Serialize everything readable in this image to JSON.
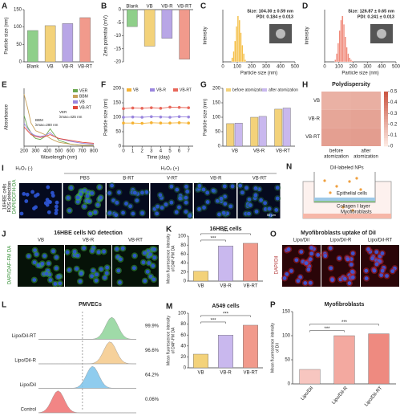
{
  "chart_data": [
    {
      "panel": "A",
      "type": "bar",
      "ylabel": "Particle size (nm)",
      "categories": [
        "Blank",
        "VB",
        "VB-R",
        "VB-RT"
      ],
      "values": [
        90,
        104,
        110,
        127
      ],
      "colors": [
        "#8fcf8a",
        "#f3d27a",
        "#b8a6e6",
        "#f19a8c"
      ],
      "ylim": [
        0,
        150
      ],
      "yticks": [
        0,
        50,
        100,
        150
      ]
    },
    {
      "panel": "B",
      "type": "bar",
      "ylabel": "Zeta potential (mV)",
      "categories": [
        "Blank",
        "VB",
        "VB-R",
        "VB-RT"
      ],
      "values": [
        -6.5,
        -14,
        -11,
        -19
      ],
      "colors": [
        "#8fcf8a",
        "#f3d27a",
        "#b8a6e6",
        "#f19a8c"
      ],
      "ylim": [
        -20,
        0
      ],
      "yticks": [
        0,
        -5,
        -10,
        -15,
        -20
      ]
    },
    {
      "panel": "C",
      "type": "histogram",
      "xlabel": "Particle size (nm)",
      "ylabel": "Intensity",
      "annotations": [
        "Size: 104.30 ± 0.59 nm",
        "PDI: 0.184 ± 0.013"
      ],
      "bins": [
        60,
        70,
        80,
        90,
        100,
        110,
        120,
        130,
        140,
        150,
        160
      ],
      "values": [
        2,
        5,
        10,
        17,
        22,
        20,
        14,
        8,
        4,
        1
      ],
      "color": "#f5c04a",
      "xlim": [
        0,
        500
      ],
      "xticks": [
        0,
        100,
        200,
        300,
        400,
        500
      ],
      "ylim": [
        0,
        25
      ]
    },
    {
      "panel": "D",
      "type": "histogram",
      "xlabel": "Particle size (nm)",
      "ylabel": "Intensity",
      "annotations": [
        "Size: 126.87 ± 0.65 nm",
        "PDI: 0.241 ± 0.013"
      ],
      "bins": [
        70,
        80,
        90,
        100,
        110,
        120,
        130,
        140,
        150,
        160,
        170,
        180,
        190,
        200
      ],
      "values": [
        1,
        4,
        9,
        15,
        20,
        22,
        18,
        12,
        7,
        4,
        2,
        1,
        0.5
      ],
      "color": "#f08a7a",
      "xlim": [
        0,
        500
      ],
      "xticks": [
        0,
        100,
        200,
        300,
        400,
        500
      ],
      "ylim": [
        0,
        25
      ]
    },
    {
      "panel": "E",
      "type": "line",
      "xlabel": "Wavelength (nm)",
      "ylabel": "Absorbance",
      "annotations": [
        "VER",
        "λmax=425 nm",
        "BBM",
        "λmax=280 nm"
      ],
      "x": [
        200,
        230,
        260,
        280,
        300,
        340,
        380,
        425,
        460,
        500,
        600,
        700,
        800
      ],
      "series": [
        {
          "name": "VER",
          "color": "#6aa84f",
          "values": [
            1.6,
            1.0,
            0.7,
            0.5,
            0.4,
            0.35,
            0.5,
            0.9,
            0.6,
            0.3,
            0.1,
            0.05,
            0.05
          ]
        },
        {
          "name": "BBM",
          "color": "#c9a25a",
          "values": [
            2.7,
            2.0,
            1.2,
            1.0,
            0.8,
            0.7,
            0.6,
            0.4,
            0.3,
            0.2,
            0.1,
            0.05,
            0.05
          ]
        },
        {
          "name": "VB",
          "color": "#9a86de",
          "values": [
            1.2,
            0.9,
            0.7,
            0.6,
            0.55,
            0.5,
            0.55,
            0.7,
            0.5,
            0.4,
            0.25,
            0.15,
            0.1
          ]
        },
        {
          "name": "VB-RT",
          "color": "#e0473a",
          "values": [
            1.0,
            0.8,
            0.6,
            0.55,
            0.5,
            0.45,
            0.5,
            0.6,
            0.5,
            0.4,
            0.3,
            0.2,
            0.15
          ]
        }
      ],
      "xlim": [
        200,
        800
      ],
      "xticks": [
        200,
        300,
        400,
        500,
        600,
        700,
        800
      ],
      "ylim": [
        0,
        3
      ],
      "legend": "upper right"
    },
    {
      "panel": "F",
      "type": "line",
      "markers": true,
      "xlabel": "Time (day)",
      "ylabel": "Particle size (nm)",
      "x": [
        0,
        1,
        2,
        3,
        4,
        5,
        6,
        7
      ],
      "series": [
        {
          "name": "VB",
          "color": "#f5b335",
          "values": [
            80,
            80,
            79,
            81,
            80,
            80,
            81,
            80
          ]
        },
        {
          "name": "VB-R",
          "color": "#9a86de",
          "values": [
            100,
            101,
            100,
            102,
            101,
            100,
            102,
            101
          ]
        },
        {
          "name": "VB-RT",
          "color": "#e8675a",
          "values": [
            130,
            132,
            131,
            133,
            131,
            135,
            134,
            133
          ]
        }
      ],
      "xlim": [
        0,
        7.5
      ],
      "xticks": [
        0,
        1,
        2,
        3,
        4,
        5,
        6,
        7
      ],
      "ylim": [
        0,
        200
      ],
      "yticks": [
        0,
        50,
        100,
        150,
        200
      ],
      "legend": "upper"
    },
    {
      "panel": "G",
      "type": "bar",
      "ylabel": "Particle size (nm)",
      "categories": [
        "VB",
        "VB-R",
        "VB-RT"
      ],
      "series": [
        {
          "name": "before atomization",
          "color": "#f3d27a",
          "values": [
            78,
            100,
            128
          ]
        },
        {
          "name": "after atomization",
          "color": "#c9b8ee",
          "values": [
            80,
            103,
            132
          ]
        }
      ],
      "ylim": [
        0,
        200
      ],
      "yticks": [
        0,
        50,
        100,
        150,
        200
      ],
      "legend": "upper"
    },
    {
      "panel": "H",
      "type": "heatmap",
      "title": "Polydispersity",
      "rows": [
        "VB",
        "VB-R",
        "VB-RT"
      ],
      "columns": [
        [
          "before",
          "atomization"
        ],
        [
          "after",
          "atomization"
        ]
      ],
      "values": [
        [
          0.184,
          0.19
        ],
        [
          0.22,
          0.23
        ],
        [
          0.241,
          0.25
        ]
      ],
      "zlim": [
        0,
        0.5
      ],
      "zticks": [
        0,
        0.1,
        0.2,
        0.3,
        0.4,
        0.5
      ]
    },
    {
      "panel": "K",
      "type": "bar",
      "title": "16HBE cells",
      "ylabel": [
        "Mean fluorescence intensity",
        "of DAF-FM DA"
      ],
      "categories": [
        "VB",
        "VB-R",
        "VB-RT"
      ],
      "values": [
        22,
        78,
        84
      ],
      "colors": [
        "#f3d27a",
        "#c9b8ee",
        "#f19a8c"
      ],
      "ylim": [
        0,
        100
      ],
      "yticks": [
        0,
        20,
        40,
        60,
        80,
        100
      ],
      "annotations": [
        "***",
        "***"
      ]
    },
    {
      "panel": "M",
      "type": "bar",
      "title": "A549 cells",
      "ylabel": [
        "Mean fluorescence intensity",
        "of DAF-FM DA"
      ],
      "categories": [
        "VB",
        "VB-R",
        "VB-RT"
      ],
      "values": [
        25,
        60,
        78
      ],
      "colors": [
        "#f3d27a",
        "#c9b8ee",
        "#f19a8c"
      ],
      "ylim": [
        0,
        100
      ],
      "yticks": [
        0,
        20,
        40,
        60,
        80,
        100
      ],
      "annotations": [
        "***",
        "***"
      ]
    },
    {
      "panel": "P",
      "type": "bar",
      "rotate": true,
      "title": "Myofibroblasts",
      "ylabel": [
        "Mean fluorescence intensity",
        "of DiI"
      ],
      "categories": [
        "Lipo/DiI",
        "Lipo/DiI-R",
        "Lipo/DiI-RT"
      ],
      "values": [
        30,
        100,
        104
      ],
      "colors": [
        "#f7c6c0",
        "#f3a9a0",
        "#ee8a80"
      ],
      "ylim": [
        0,
        150
      ],
      "yticks": [
        0,
        50,
        100,
        150
      ],
      "annotations": [
        "***",
        "***"
      ]
    },
    {
      "panel": "L",
      "type": "flow",
      "title": "PMVECs",
      "categories": [
        "Lipo/DiI-RT",
        "Lipo/DiI-R",
        "Lipo/DiI",
        "Control"
      ],
      "values": [
        99.9,
        96.6,
        64.2,
        0.06
      ],
      "value_labels": [
        "99.9%",
        "96.6%",
        "64.2%",
        "0.06%"
      ],
      "colors": [
        "#8fd49a",
        "#f5c98a",
        "#7cc4ec",
        "#f07070"
      ]
    }
  ],
  "panels": {
    "I": {
      "panel": "I",
      "side": [
        "16HBE cells",
        "ROS detection"
      ],
      "stain": "DAPI/DCFH-DA",
      "groups": [
        "H₂O₂ (-)",
        "H₂O₂ (+)"
      ],
      "columns": [
        "PBS",
        "B-RT",
        "V-RT",
        "VB-R",
        "VB-RT"
      ],
      "scale": "50 μm"
    },
    "N": {
      "panel": "N",
      "labels": [
        "DiI-labeled NPs",
        "Epithelial cells",
        "Collagen I layer",
        "Myofibroblasts"
      ]
    },
    "J": {
      "panel": "J",
      "title": "16HBE cells NO detection",
      "stain": "DAPI/DAF-FM DA",
      "columns": [
        "VB",
        "VB-R",
        "VB-RT"
      ]
    },
    "O": {
      "panel": "O",
      "title": "Myofibroblasts uptake of DiI",
      "stain": "DAPI/DiI",
      "columns": [
        "Lipo/DiI",
        "Lipo/DiI-R",
        "Lipo/DiI-RT"
      ]
    }
  }
}
